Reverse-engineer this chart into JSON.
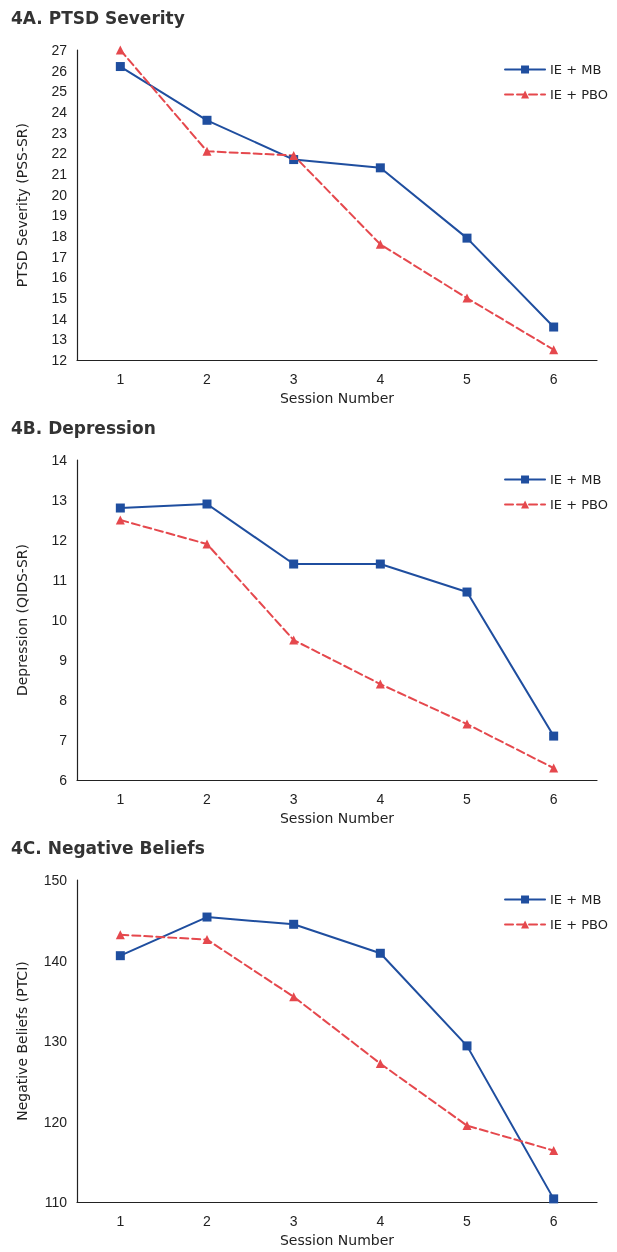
{
  "chart_data": [
    {
      "type": "line",
      "title": "4A. PTSD Severity",
      "xlabel": "Session Number",
      "ylabel": "PTSD Severity (PSS-SR)",
      "categories": [
        "1",
        "2",
        "3",
        "4",
        "5",
        "6"
      ],
      "ylim": [
        12,
        27
      ],
      "yticks": [
        12,
        13,
        14,
        15,
        16,
        17,
        18,
        19,
        20,
        21,
        22,
        23,
        24,
        25,
        26,
        27
      ],
      "grid": false,
      "legend": "top right",
      "series": [
        {
          "name": "IE + MB",
          "color": "#1f4e9f",
          "marker": "square",
          "line_style": "solid",
          "values": [
            26.2,
            23.6,
            21.7,
            21.3,
            17.9,
            13.6
          ]
        },
        {
          "name": "IE + PBO",
          "color": "#e5484d",
          "marker": "triangle",
          "line_style": "dashed",
          "values": [
            27.0,
            22.1,
            21.9,
            17.6,
            15.0,
            12.5
          ]
        }
      ]
    },
    {
      "type": "line",
      "title": "4B. Depression",
      "xlabel": "Session Number",
      "ylabel": "Depression (QIDS-SR)",
      "categories": [
        "1",
        "2",
        "3",
        "4",
        "5",
        "6"
      ],
      "ylim": [
        6,
        14
      ],
      "yticks": [
        6,
        7,
        8,
        9,
        10,
        11,
        12,
        13,
        14
      ],
      "grid": false,
      "legend": "top right",
      "series": [
        {
          "name": "IE + MB",
          "color": "#1f4e9f",
          "marker": "square",
          "line_style": "solid",
          "values": [
            12.8,
            12.9,
            11.4,
            11.4,
            10.7,
            7.1
          ]
        },
        {
          "name": "IE + PBO",
          "color": "#e5484d",
          "marker": "triangle",
          "line_style": "dashed",
          "values": [
            12.5,
            11.9,
            9.5,
            8.4,
            7.4,
            6.3
          ]
        }
      ]
    },
    {
      "type": "line",
      "title": "4C. Negative Beliefs",
      "xlabel": "Session Number",
      "ylabel": "Negative Beliefs (PTCI)",
      "categories": [
        "1",
        "2",
        "3",
        "4",
        "5",
        "6"
      ],
      "ylim": [
        110,
        150
      ],
      "yticks": [
        110,
        120,
        130,
        140,
        150
      ],
      "grid": false,
      "legend": "top right",
      "series": [
        {
          "name": "IE + MB",
          "color": "#1f4e9f",
          "marker": "square",
          "line_style": "solid",
          "values": [
            140.6,
            145.4,
            144.5,
            140.9,
            129.4,
            110.4
          ]
        },
        {
          "name": "IE + PBO",
          "color": "#e5484d",
          "marker": "triangle",
          "line_style": "dashed",
          "values": [
            143.2,
            142.6,
            135.5,
            127.2,
            119.5,
            116.4
          ]
        }
      ]
    }
  ]
}
